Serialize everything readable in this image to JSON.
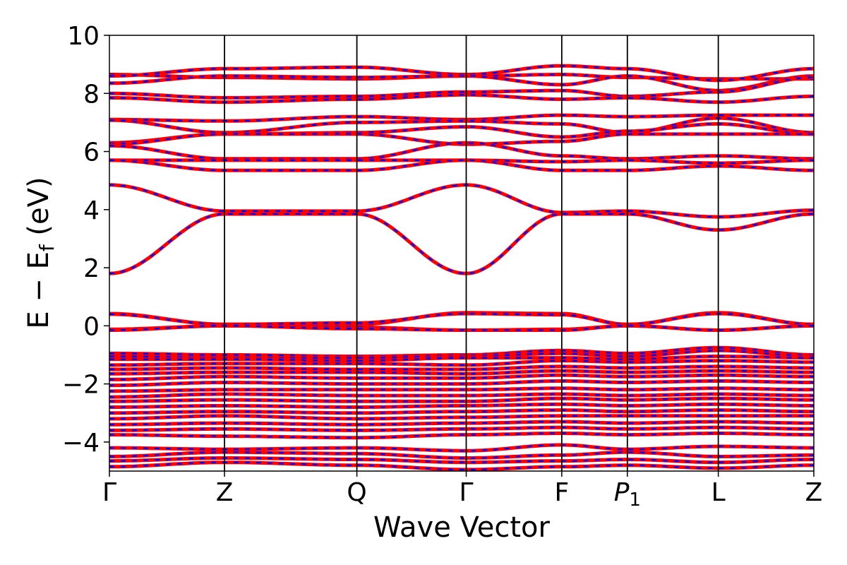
{
  "chart_data": {
    "type": "line",
    "title": "",
    "xlabel": "Wave Vector",
    "ylabel_main": "E − E",
    "ylabel_sub": "f",
    "ylabel_unit": " (eV)",
    "ylim": [
      -5,
      10
    ],
    "yticks": [
      -4,
      -2,
      0,
      2,
      4,
      6,
      8,
      10
    ],
    "ytick_labels": [
      "−4",
      "−2",
      "0",
      "2",
      "4",
      "6",
      "8",
      "10"
    ],
    "xlim": [
      0,
      6.12
    ],
    "kpoints": [
      {
        "label": "Γ",
        "sub": "",
        "x": 0
      },
      {
        "label": "Z",
        "sub": "",
        "x": 1.0
      },
      {
        "label": "Q",
        "sub": "",
        "x": 2.15
      },
      {
        "label": "Γ",
        "sub": "",
        "x": 3.1
      },
      {
        "label": "F",
        "sub": "",
        "x": 3.93
      },
      {
        "label": "P",
        "sub": "1",
        "x": 4.5
      },
      {
        "label": "L",
        "sub": "",
        "x": 5.29
      },
      {
        "label": "Z",
        "sub": "",
        "x": 6.12
      }
    ],
    "grid": false,
    "legend": "none",
    "series_styles": [
      {
        "color": "#ff0000",
        "style": "solid"
      },
      {
        "color": "#0000ff",
        "style": "dashed"
      }
    ],
    "bands": [
      [
        8.65,
        8.55,
        8.5,
        8.6,
        8.65,
        8.55,
        8.5,
        8.5
      ],
      [
        8.6,
        8.85,
        8.9,
        8.65,
        8.95,
        8.85,
        8.45,
        8.85
      ],
      [
        8.35,
        8.6,
        8.55,
        8.6,
        8.3,
        8.6,
        8.1,
        8.6
      ],
      [
        8.0,
        7.85,
        7.9,
        8.05,
        8.1,
        7.9,
        8.05,
        8.55
      ],
      [
        7.85,
        7.7,
        7.8,
        7.95,
        7.8,
        7.85,
        7.7,
        7.9
      ],
      [
        7.1,
        7.05,
        7.2,
        7.1,
        7.25,
        7.2,
        7.25,
        7.25
      ],
      [
        7.08,
        6.65,
        7.0,
        7.05,
        6.95,
        6.65,
        7.15,
        6.65
      ],
      [
        6.3,
        6.6,
        6.65,
        6.85,
        6.5,
        6.7,
        6.95,
        6.6
      ],
      [
        6.25,
        6.6,
        6.6,
        6.25,
        6.35,
        6.6,
        6.6,
        6.6
      ],
      [
        6.2,
        5.75,
        5.75,
        6.3,
        5.85,
        5.75,
        5.85,
        5.75
      ],
      [
        5.7,
        5.7,
        5.7,
        5.7,
        5.65,
        5.7,
        5.6,
        5.7
      ],
      [
        5.7,
        5.35,
        5.35,
        5.7,
        5.35,
        5.35,
        5.5,
        5.35
      ],
      [
        4.85,
        3.95,
        3.95,
        4.85,
        3.9,
        3.95,
        3.75,
        3.98
      ],
      [
        1.8,
        3.85,
        3.85,
        1.8,
        3.85,
        3.85,
        3.3,
        3.85
      ],
      [
        0.42,
        0.05,
        0.05,
        0.45,
        0.42,
        0.05,
        0.45,
        0.05
      ],
      [
        0.4,
        0.05,
        0.1,
        0.42,
        0.38,
        0.05,
        0.42,
        0.05
      ],
      [
        -0.12,
        0.0,
        -0.05,
        -0.15,
        -0.12,
        0.0,
        -0.15,
        0.0
      ],
      [
        -0.15,
        0.0,
        -0.1,
        -0.15,
        -0.15,
        0.0,
        -0.15,
        0.0
      ],
      [
        -0.95,
        -1.0,
        -1.05,
        -1.0,
        -0.85,
        -0.95,
        -0.75,
        -1.0
      ],
      [
        -1.05,
        -1.1,
        -1.1,
        -1.05,
        -0.95,
        -1.05,
        -0.85,
        -1.05
      ],
      [
        -1.15,
        -1.15,
        -1.2,
        -1.1,
        -1.1,
        -1.15,
        -1.05,
        -1.1
      ],
      [
        -1.35,
        -1.3,
        -1.3,
        -1.35,
        -1.2,
        -1.25,
        -1.2,
        -1.25
      ],
      [
        -1.5,
        -1.45,
        -1.5,
        -1.5,
        -1.4,
        -1.45,
        -1.4,
        -1.45
      ],
      [
        -1.65,
        -1.6,
        -1.6,
        -1.65,
        -1.55,
        -1.6,
        -1.55,
        -1.6
      ],
      [
        -1.85,
        -1.75,
        -1.8,
        -1.8,
        -1.7,
        -1.75,
        -1.7,
        -1.75
      ],
      [
        -2.05,
        -1.95,
        -2.0,
        -2.0,
        -1.9,
        -1.95,
        -1.9,
        -1.95
      ],
      [
        -2.25,
        -2.2,
        -2.2,
        -2.2,
        -2.15,
        -2.2,
        -2.15,
        -2.2
      ],
      [
        -2.45,
        -2.35,
        -2.4,
        -2.4,
        -2.35,
        -2.4,
        -2.35,
        -2.4
      ],
      [
        -2.6,
        -2.55,
        -2.6,
        -2.6,
        -2.5,
        -2.55,
        -2.5,
        -2.55
      ],
      [
        -2.8,
        -2.75,
        -2.8,
        -2.75,
        -2.7,
        -2.75,
        -2.7,
        -2.75
      ],
      [
        -3.0,
        -2.95,
        -3.0,
        -2.95,
        -2.9,
        -2.95,
        -2.9,
        -2.95
      ],
      [
        -3.2,
        -3.1,
        -3.2,
        -3.15,
        -3.1,
        -3.1,
        -3.1,
        -3.1
      ],
      [
        -3.4,
        -3.35,
        -3.4,
        -3.35,
        -3.3,
        -3.35,
        -3.3,
        -3.35
      ],
      [
        -3.6,
        -3.55,
        -3.6,
        -3.55,
        -3.5,
        -3.55,
        -3.5,
        -3.55
      ],
      [
        -3.75,
        -3.8,
        -3.85,
        -3.75,
        -3.7,
        -3.75,
        -3.7,
        -3.75
      ],
      [
        -4.2,
        -4.25,
        -4.2,
        -4.3,
        -4.1,
        -4.25,
        -4.15,
        -4.2
      ],
      [
        -4.5,
        -4.35,
        -4.4,
        -4.55,
        -4.45,
        -4.35,
        -4.5,
        -4.45
      ],
      [
        -4.65,
        -4.55,
        -4.6,
        -4.7,
        -4.65,
        -4.6,
        -4.7,
        -4.6
      ],
      [
        -4.85,
        -4.7,
        -4.8,
        -4.95,
        -4.85,
        -4.8,
        -4.9,
        -4.8
      ]
    ]
  }
}
